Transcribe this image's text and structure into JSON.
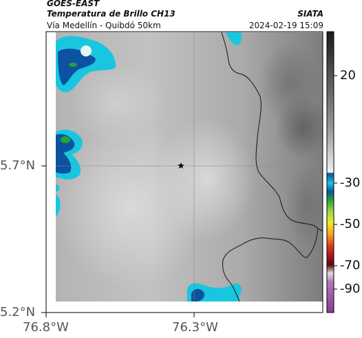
{
  "header": {
    "source": "GOES-EAST",
    "product": "Temperatura de Brillo CH13",
    "region": "Vía Medellín - Quibdó 50km",
    "agency": "SIATA",
    "datetime": "2024-02-19 15:09"
  },
  "axes": {
    "y_ticks": [
      "5.7°N",
      "5.2°N"
    ],
    "x_ticks": [
      "76.8°W",
      "76.3°W"
    ]
  },
  "colorbar": {
    "ticks": [
      "20",
      "-30",
      "-50",
      "-70",
      "-90"
    ]
  },
  "colors": {
    "cloud_cyan": "#19c6df",
    "cloud_blue": "#0b52a0",
    "cloud_green": "#27a331",
    "cloud_white": "#e8f6f8",
    "star": "#000000"
  }
}
